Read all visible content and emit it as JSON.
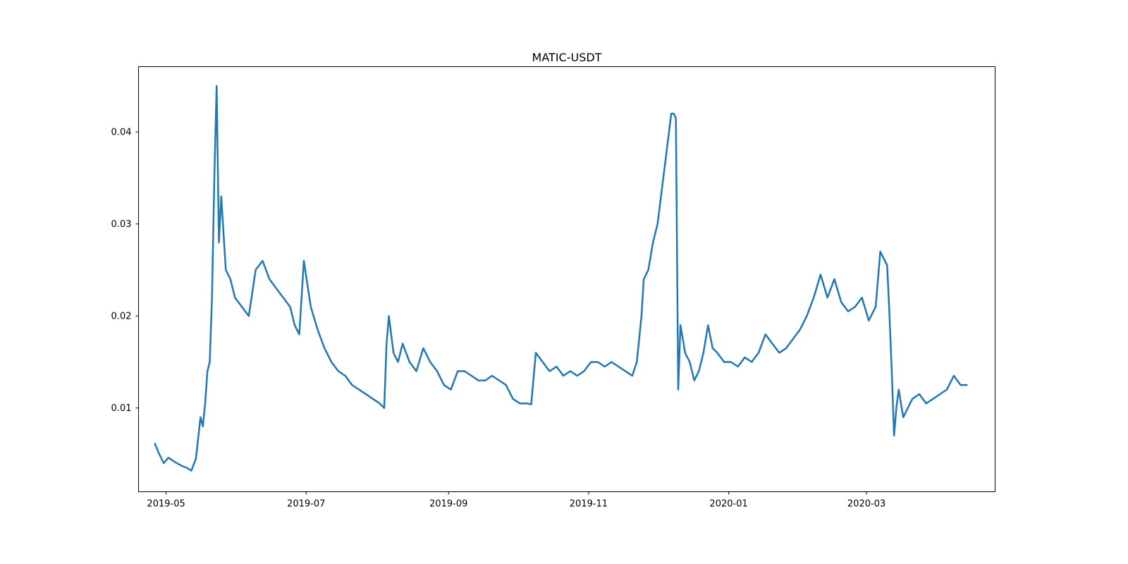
{
  "chart_data": {
    "type": "line",
    "title": "MATIC-USDT",
    "xlabel": "",
    "ylabel": "",
    "x_type": "date",
    "xlim": [
      "2019-04-19",
      "2020-04-26"
    ],
    "ylim": [
      0.0009,
      0.0471
    ],
    "grid": false,
    "line_color": "#1f77b4",
    "x_ticks": [
      "2019-05",
      "2019-07",
      "2019-09",
      "2019-11",
      "2020-01",
      "2020-03"
    ],
    "y_ticks": [
      "0.01",
      "0.02",
      "0.03",
      "0.04"
    ],
    "series": [
      {
        "x": [
          "2019-04-26",
          "2019-04-28",
          "2019-04-30",
          "2019-05-02",
          "2019-05-05",
          "2019-05-08",
          "2019-05-10",
          "2019-05-12",
          "2019-05-14",
          "2019-05-16",
          "2019-05-17",
          "2019-05-18",
          "2019-05-19",
          "2019-05-20",
          "2019-05-21",
          "2019-05-22",
          "2019-05-23",
          "2019-05-24",
          "2019-05-25",
          "2019-05-27",
          "2019-05-29",
          "2019-05-31",
          "2019-06-03",
          "2019-06-06",
          "2019-06-09",
          "2019-06-12",
          "2019-06-15",
          "2019-06-18",
          "2019-06-21",
          "2019-06-24",
          "2019-06-26",
          "2019-06-28",
          "2019-06-30",
          "2019-07-03",
          "2019-07-06",
          "2019-07-09",
          "2019-07-12",
          "2019-07-15",
          "2019-07-18",
          "2019-07-21",
          "2019-07-24",
          "2019-07-27",
          "2019-07-30",
          "2019-08-02",
          "2019-08-04",
          "2019-08-05",
          "2019-08-06",
          "2019-08-08",
          "2019-08-10",
          "2019-08-12",
          "2019-08-15",
          "2019-08-18",
          "2019-08-21",
          "2019-08-24",
          "2019-08-27",
          "2019-08-30",
          "2019-09-02",
          "2019-09-05",
          "2019-09-08",
          "2019-09-11",
          "2019-09-14",
          "2019-09-17",
          "2019-09-20",
          "2019-09-23",
          "2019-09-26",
          "2019-09-29",
          "2019-10-02",
          "2019-10-05",
          "2019-10-07",
          "2019-10-09",
          "2019-10-12",
          "2019-10-15",
          "2019-10-18",
          "2019-10-21",
          "2019-10-24",
          "2019-10-27",
          "2019-10-30",
          "2019-11-02",
          "2019-11-05",
          "2019-11-08",
          "2019-11-11",
          "2019-11-14",
          "2019-11-17",
          "2019-11-20",
          "2019-11-22",
          "2019-11-24",
          "2019-11-25",
          "2019-11-27",
          "2019-11-29",
          "2019-12-01",
          "2019-12-03",
          "2019-12-05",
          "2019-12-07",
          "2019-12-08",
          "2019-12-09",
          "2019-12-10",
          "2019-12-11",
          "2019-12-13",
          "2019-12-15",
          "2019-12-17",
          "2019-12-19",
          "2019-12-21",
          "2019-12-23",
          "2019-12-25",
          "2019-12-27",
          "2019-12-30",
          "2020-01-02",
          "2020-01-05",
          "2020-01-08",
          "2020-01-11",
          "2020-01-14",
          "2020-01-17",
          "2020-01-20",
          "2020-01-23",
          "2020-01-26",
          "2020-01-29",
          "2020-02-01",
          "2020-02-04",
          "2020-02-07",
          "2020-02-10",
          "2020-02-13",
          "2020-02-16",
          "2020-02-19",
          "2020-02-22",
          "2020-02-25",
          "2020-02-28",
          "2020-03-02",
          "2020-03-05",
          "2020-03-07",
          "2020-03-09",
          "2020-03-10",
          "2020-03-11",
          "2020-03-12",
          "2020-03-13",
          "2020-03-14",
          "2020-03-15",
          "2020-03-17",
          "2020-03-19",
          "2020-03-21",
          "2020-03-24",
          "2020-03-27",
          "2020-03-30",
          "2020-04-02",
          "2020-04-05",
          "2020-04-08",
          "2020-04-11",
          "2020-04-14"
        ],
        "y": [
          0.0062,
          0.005,
          0.004,
          0.0046,
          0.0041,
          0.0037,
          0.0035,
          0.0032,
          0.0045,
          0.009,
          0.008,
          0.0105,
          0.014,
          0.015,
          0.022,
          0.035,
          0.045,
          0.028,
          0.033,
          0.025,
          0.024,
          0.022,
          0.021,
          0.02,
          0.025,
          0.026,
          0.024,
          0.023,
          0.022,
          0.021,
          0.019,
          0.018,
          0.026,
          0.021,
          0.0185,
          0.0165,
          0.015,
          0.014,
          0.0135,
          0.0125,
          0.012,
          0.0115,
          0.011,
          0.0105,
          0.01,
          0.017,
          0.02,
          0.016,
          0.015,
          0.017,
          0.015,
          0.014,
          0.0165,
          0.015,
          0.014,
          0.0125,
          0.012,
          0.014,
          0.014,
          0.0135,
          0.013,
          0.013,
          0.0135,
          0.013,
          0.0125,
          0.011,
          0.0105,
          0.0105,
          0.0104,
          0.016,
          0.015,
          0.014,
          0.0145,
          0.0135,
          0.014,
          0.0135,
          0.014,
          0.015,
          0.015,
          0.0145,
          0.015,
          0.0145,
          0.014,
          0.0135,
          0.015,
          0.02,
          0.024,
          0.025,
          0.028,
          0.03,
          0.034,
          0.038,
          0.042,
          0.042,
          0.0415,
          0.012,
          0.019,
          0.016,
          0.015,
          0.013,
          0.014,
          0.016,
          0.019,
          0.0165,
          0.016,
          0.015,
          0.015,
          0.0145,
          0.0155,
          0.015,
          0.016,
          0.018,
          0.017,
          0.016,
          0.0165,
          0.0175,
          0.0185,
          0.02,
          0.022,
          0.0245,
          0.022,
          0.024,
          0.0215,
          0.0205,
          0.021,
          0.022,
          0.0195,
          0.021,
          0.027,
          0.026,
          0.0255,
          0.02,
          0.014,
          0.007,
          0.01,
          0.012,
          0.009,
          0.01,
          0.011,
          0.0115,
          0.0105,
          0.011,
          0.0115,
          0.012,
          0.0135,
          0.0125,
          0.0125
        ]
      }
    ]
  }
}
